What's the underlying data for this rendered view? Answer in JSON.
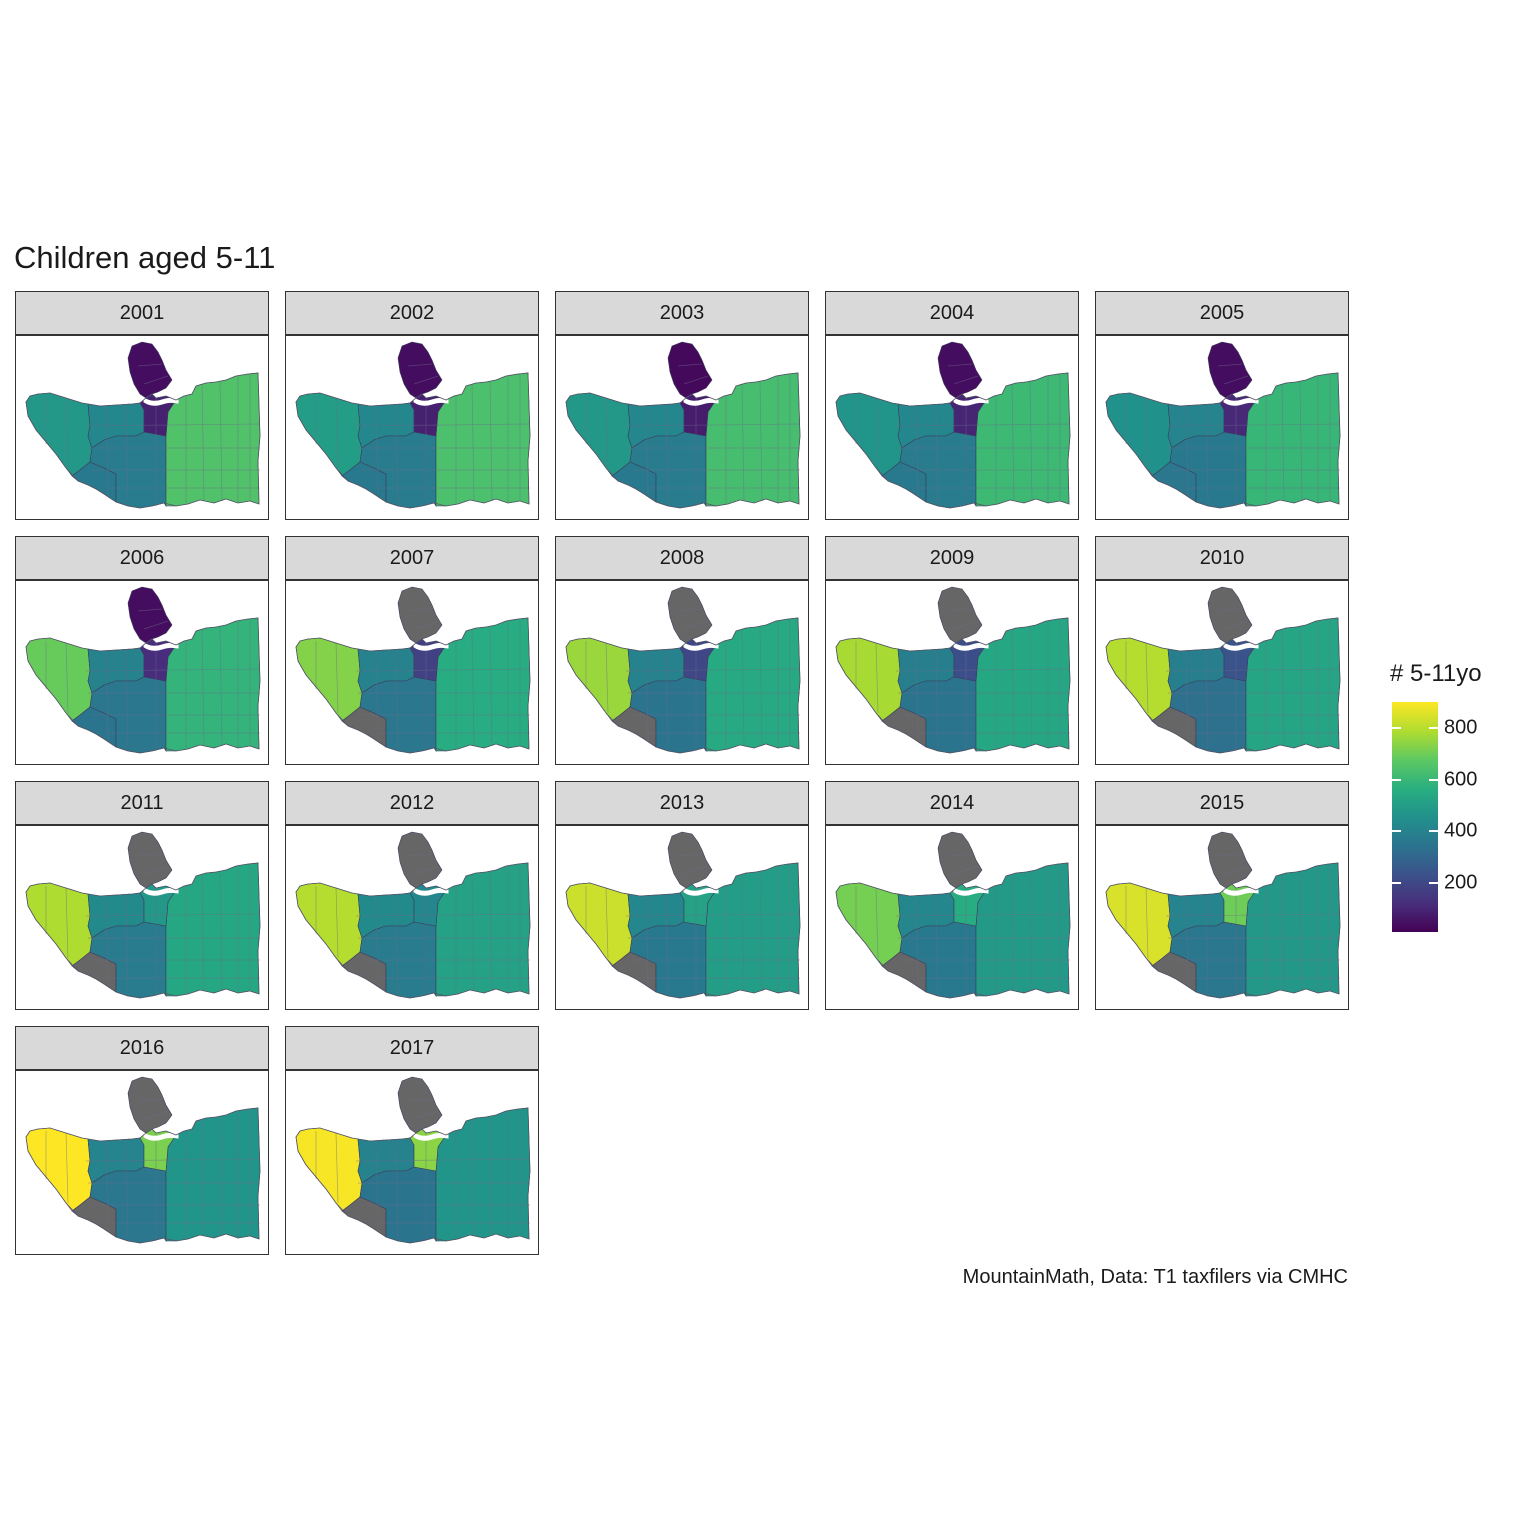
{
  "title": "Children aged 5-11",
  "caption": "MountainMath, Data: T1 taxfilers via CMHC",
  "legend": {
    "title": "# 5-11yo",
    "ticks": [
      200,
      400,
      600,
      800
    ],
    "range": [
      10,
      900
    ],
    "palette": "viridis",
    "missing_color": "#666666"
  },
  "chart_data": {
    "type": "heatmap",
    "subtype": "choropleth small multiples",
    "title": "Children aged 5-11",
    "fill_label": "# 5-11yo",
    "scale": {
      "palette": "viridis",
      "min": 10,
      "max": 900,
      "breaks": [
        200,
        400,
        600,
        800
      ]
    },
    "panels": [
      {
        "year": "2001",
        "west_end": 40,
        "downtown": 90,
        "point_grey": 480,
        "dunbar": 420,
        "kerrisdale": 380,
        "southwest_marine": 370,
        "east_side": 650,
        "missing": []
      },
      {
        "year": "2002",
        "west_end": 40,
        "downtown": 90,
        "point_grey": 500,
        "dunbar": 420,
        "kerrisdale": 380,
        "southwest_marine": 370,
        "east_side": 640,
        "missing": []
      },
      {
        "year": "2003",
        "west_end": 30,
        "downtown": 80,
        "point_grey": 480,
        "dunbar": 420,
        "kerrisdale": 380,
        "southwest_marine": 370,
        "east_side": 630,
        "missing": []
      },
      {
        "year": "2004",
        "west_end": 40,
        "downtown": 100,
        "point_grey": 470,
        "dunbar": 420,
        "kerrisdale": 380,
        "southwest_marine": 370,
        "east_side": 610,
        "missing": []
      },
      {
        "year": "2005",
        "west_end": 40,
        "downtown": 110,
        "point_grey": 460,
        "dunbar": 410,
        "kerrisdale": 370,
        "southwest_marine": 360,
        "east_side": 600,
        "missing": []
      },
      {
        "year": "2006",
        "west_end": 40,
        "downtown": 120,
        "point_grey": 690,
        "dunbar": 400,
        "kerrisdale": 360,
        "southwest_marine": 350,
        "east_side": 590,
        "missing": []
      },
      {
        "year": "2007",
        "west_end": null,
        "downtown": 180,
        "point_grey": 730,
        "dunbar": 400,
        "kerrisdale": 360,
        "southwest_marine": null,
        "east_side": 560,
        "missing": [
          "west_end",
          "southwest_marine"
        ]
      },
      {
        "year": "2008",
        "west_end": null,
        "downtown": 200,
        "point_grey": 760,
        "dunbar": 400,
        "kerrisdale": 350,
        "southwest_marine": null,
        "east_side": 550,
        "missing": [
          "west_end",
          "southwest_marine"
        ]
      },
      {
        "year": "2009",
        "west_end": null,
        "downtown": 220,
        "point_grey": 780,
        "dunbar": 390,
        "kerrisdale": 350,
        "southwest_marine": null,
        "east_side": 540,
        "missing": [
          "west_end",
          "southwest_marine"
        ]
      },
      {
        "year": "2010",
        "west_end": null,
        "downtown": 240,
        "point_grey": 800,
        "dunbar": 390,
        "kerrisdale": 340,
        "southwest_marine": null,
        "east_side": 530,
        "missing": [
          "west_end",
          "southwest_marine"
        ]
      },
      {
        "year": "2011",
        "west_end": null,
        "downtown": 480,
        "point_grey": 790,
        "dunbar": 430,
        "kerrisdale": 380,
        "southwest_marine": null,
        "east_side": 540,
        "missing": [
          "west_end",
          "southwest_marine"
        ]
      },
      {
        "year": "2012",
        "west_end": null,
        "downtown": 420,
        "point_grey": 800,
        "dunbar": 430,
        "kerrisdale": 380,
        "southwest_marine": null,
        "east_side": 520,
        "missing": [
          "west_end",
          "southwest_marine"
        ]
      },
      {
        "year": "2013",
        "west_end": null,
        "downtown": 520,
        "point_grey": 830,
        "dunbar": 420,
        "kerrisdale": 370,
        "southwest_marine": null,
        "east_side": 500,
        "missing": [
          "west_end",
          "southwest_marine"
        ]
      },
      {
        "year": "2014",
        "west_end": null,
        "downtown": 560,
        "point_grey": 710,
        "dunbar": 420,
        "kerrisdale": 370,
        "southwest_marine": null,
        "east_side": 490,
        "missing": [
          "west_end",
          "southwest_marine"
        ]
      },
      {
        "year": "2015",
        "west_end": null,
        "downtown": 700,
        "point_grey": 850,
        "dunbar": 410,
        "kerrisdale": 360,
        "southwest_marine": null,
        "east_side": 480,
        "missing": [
          "west_end",
          "southwest_marine"
        ]
      },
      {
        "year": "2016",
        "west_end": null,
        "downtown": 720,
        "point_grey": 900,
        "dunbar": 410,
        "kerrisdale": 360,
        "southwest_marine": null,
        "east_side": 470,
        "missing": [
          "west_end",
          "southwest_marine"
        ]
      },
      {
        "year": "2017",
        "west_end": null,
        "downtown": 740,
        "point_grey": 890,
        "dunbar": 400,
        "kerrisdale": 350,
        "southwest_marine": null,
        "east_side": 470,
        "missing": [
          "west_end",
          "southwest_marine"
        ]
      }
    ]
  }
}
